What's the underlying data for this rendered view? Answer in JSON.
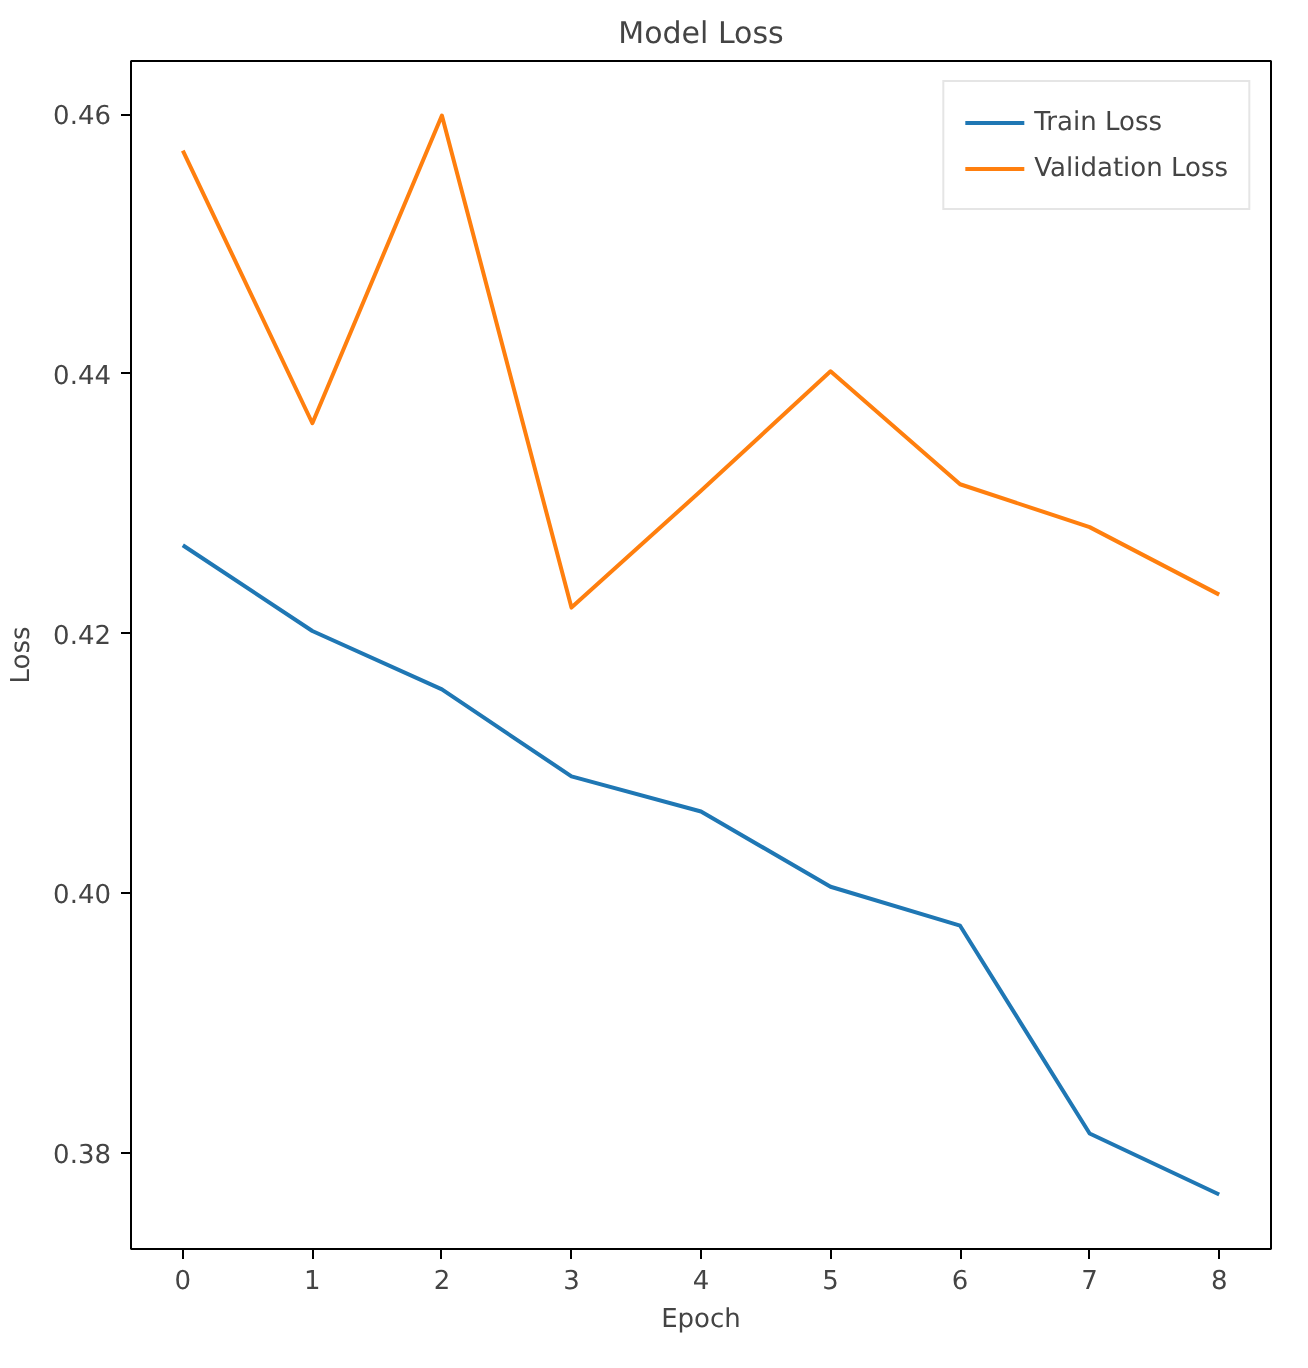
{
  "chart_data": {
    "type": "line",
    "title": "Model Loss",
    "xlabel": "Epoch",
    "ylabel": "Loss",
    "x": [
      0,
      1,
      2,
      3,
      4,
      5,
      6,
      7,
      8
    ],
    "series": [
      {
        "name": "Train Loss",
        "color": "#1f77b4",
        "values": [
          0.4268,
          0.4202,
          0.4157,
          0.409,
          0.4063,
          0.4005,
          0.3975,
          0.3815,
          0.3768
        ]
      },
      {
        "name": "Validation Loss",
        "color": "#ff7f0e",
        "values": [
          0.4572,
          0.4362,
          0.4599,
          0.422,
          0.431,
          0.4402,
          0.4315,
          0.4282,
          0.423
        ]
      }
    ],
    "xlim": [
      -0.4,
      8.4
    ],
    "ylim": [
      0.3726,
      0.4641
    ],
    "xticks": [
      0,
      1,
      2,
      3,
      4,
      5,
      6,
      7,
      8
    ],
    "yticks": [
      {
        "value": 0.38,
        "label": "0.38"
      },
      {
        "value": 0.4,
        "label": "0.40"
      },
      {
        "value": 0.42,
        "label": "0.42"
      },
      {
        "value": 0.44,
        "label": "0.44"
      },
      {
        "value": 0.46,
        "label": "0.46"
      }
    ],
    "grid": false,
    "legend": "top right",
    "marker": "none",
    "line_style": "solid"
  }
}
